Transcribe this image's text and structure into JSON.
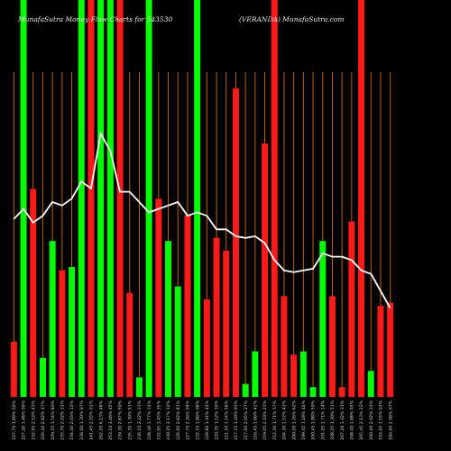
{
  "chart_data": {
    "type": "bar",
    "title_left": "MunafaSutra  Money Flow  Charts for 543530",
    "title_right": "(VERANDA) MunafaSutra.com",
    "colors": {
      "up": "#00ff00",
      "down": "#ff1a1a",
      "grid": "#b5651d",
      "price": "#ffffff",
      "background": "#000000"
    },
    "ylim": [
      0,
      100
    ],
    "bars": [
      {
        "label": "227.70 1.89% 02%",
        "value": 17,
        "dir": "down",
        "full": false
      },
      {
        "label": "227.20 1.48% 09%",
        "value": 100,
        "dir": "up",
        "full": true
      },
      {
        "label": "232.95 2.53% 43%",
        "value": 64,
        "dir": "down",
        "full": false
      },
      {
        "label": "226.40 2.82% 47%",
        "value": 12,
        "dir": "up",
        "full": false
      },
      {
        "label": "229.25 1.54% 80%",
        "value": 48,
        "dir": "up",
        "full": false
      },
      {
        "label": "235.70 2.02% 13%",
        "value": 39,
        "dir": "down",
        "full": false
      },
      {
        "label": "234.40 2.03% 13%",
        "value": 40,
        "dir": "up",
        "full": false
      },
      {
        "label": "236.00 1.30% 07%",
        "value": 100,
        "dir": "up",
        "full": true
      },
      {
        "label": "241.45 2.55% 01%",
        "value": 100,
        "dir": "down",
        "full": true
      },
      {
        "label": "262.20 6.13% 48%",
        "value": 100,
        "dir": "up",
        "full": true
      },
      {
        "label": "253.10 3.46% 45%",
        "value": 100,
        "dir": "up",
        "full": true
      },
      {
        "label": "239.30 2.87% 59%",
        "value": 100,
        "dir": "down",
        "full": true
      },
      {
        "label": "235.35 1.39% 51%",
        "value": 32,
        "dir": "down",
        "full": false
      },
      {
        "label": "236.10 2.22% 23%",
        "value": 6,
        "dir": "up",
        "full": false
      },
      {
        "label": "228.40 1.77% 31%",
        "value": 100,
        "dir": "up",
        "full": true
      },
      {
        "label": "232.95 3.45% 35%",
        "value": 61,
        "dir": "down",
        "full": false
      },
      {
        "label": "230.25 3.17% 12%",
        "value": 48,
        "dir": "up",
        "full": false
      },
      {
        "label": "226.60 2.82% 81%",
        "value": 34,
        "dir": "up",
        "full": false
      },
      {
        "label": "227.70 2.26% 04%",
        "value": 56,
        "dir": "down",
        "full": false
      },
      {
        "label": "232.55 1.86% 08%",
        "value": 100,
        "dir": "up",
        "full": true
      },
      {
        "label": "226.80 1.91% 43%",
        "value": 30,
        "dir": "down",
        "full": false
      },
      {
        "label": "220.35 1.52% 30%",
        "value": 49,
        "dir": "down",
        "full": false
      },
      {
        "label": "221.10 1.54% 56%",
        "value": 45,
        "dir": "down",
        "full": false
      },
      {
        "label": "217.15 1.49% 93%",
        "value": 95,
        "dir": "down",
        "full": false
      },
      {
        "label": "217.00 2.05% 27%",
        "value": 4,
        "dir": "up",
        "full": false
      },
      {
        "label": "216.45 1.66% 41%",
        "value": 14,
        "dir": "up",
        "full": false
      },
      {
        "label": "219.05 2.19% 21%",
        "value": 78,
        "dir": "down",
        "full": false
      },
      {
        "label": "212.30 1.71% 57%",
        "value": 100,
        "dir": "down",
        "full": true
      },
      {
        "label": "204.30 1.52% 43%",
        "value": 31,
        "dir": "down",
        "full": false
      },
      {
        "label": "200.00 1.26% 62%",
        "value": 13,
        "dir": "down",
        "full": false
      },
      {
        "label": "199.45 1.18% 44%",
        "value": 14,
        "dir": "up",
        "full": false
      },
      {
        "label": "200.45 1.88% 59%",
        "value": 3,
        "dir": "up",
        "full": false
      },
      {
        "label": "201.25 1.71% 14%",
        "value": 48,
        "dir": "up",
        "full": false
      },
      {
        "label": "208.25 1.30% 51%",
        "value": 31,
        "dir": "down",
        "full": false
      },
      {
        "label": "207.20 1.42% 33%",
        "value": 3,
        "dir": "down",
        "full": false
      },
      {
        "label": "208.00 1.88% 03%",
        "value": 54,
        "dir": "down",
        "full": false
      },
      {
        "label": "205.45 2.13% 23%",
        "value": 100,
        "dir": "down",
        "full": true
      },
      {
        "label": "200.00 2.92% 23%",
        "value": 8,
        "dir": "up",
        "full": false
      },
      {
        "label": "193.65 1.55% 03%",
        "value": 28,
        "dir": "down",
        "full": false
      },
      {
        "label": "186.40 2.06% 07%",
        "value": 29,
        "dir": "down",
        "full": false
      }
    ],
    "price_line": [
      232.0,
      235.0,
      231.0,
      233.0,
      237.0,
      236.0,
      238.0,
      243.0,
      241.0,
      257.0,
      252.0,
      240.0,
      240.0,
      237.0,
      234.0,
      235.0,
      236.0,
      237.0,
      233.0,
      234.0,
      233.0,
      229.0,
      229.0,
      227.0,
      226.5,
      227.0,
      225.0,
      220.0,
      217.0,
      216.5,
      217.0,
      217.5,
      222.0,
      221.0,
      221.0,
      220.0,
      217.0,
      216.0,
      211.0,
      206.0
    ],
    "price_range": [
      180,
      275
    ]
  }
}
